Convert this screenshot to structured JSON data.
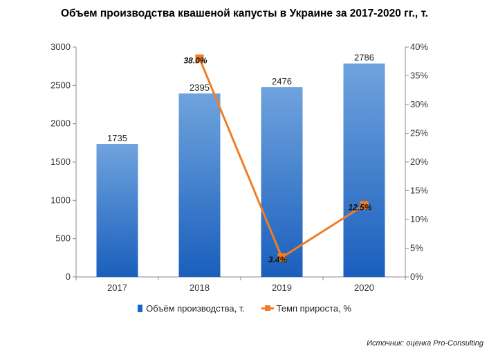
{
  "title": "Объем производства квашеной капусты в Украине за 2017-2020 гг., т.",
  "source": "Источник: оценка Pro-Consulting",
  "colors": {
    "bar": "#1a66c4",
    "bar_top": "#6fa3dd",
    "line": "#f07d26",
    "axis": "#888888"
  },
  "chart_data": {
    "type": "bar",
    "categories": [
      "2017",
      "2018",
      "2019",
      "2020"
    ],
    "series": [
      {
        "name": "Объём производства, т.",
        "type": "bar",
        "axis": "left",
        "values": [
          1735,
          2395,
          2476,
          2786
        ],
        "labels": [
          "1735",
          "2395",
          "2476",
          "2786"
        ]
      },
      {
        "name": "Темп прироста, %",
        "type": "line",
        "axis": "right",
        "x": [
          "2018",
          "2019",
          "2020"
        ],
        "values": [
          38.0,
          3.4,
          12.5
        ],
        "labels": [
          "38.0%",
          "3.4%",
          "12.5%"
        ]
      }
    ],
    "ylim_left": [
      0,
      3000
    ],
    "yticks_left": [
      "3000",
      "2500",
      "2000",
      "1500",
      "1000",
      "500",
      "0"
    ],
    "ylim_right": [
      0,
      40
    ],
    "yticks_right": [
      "40%",
      "35%",
      "30%",
      "25%",
      "20%",
      "15%",
      "10%",
      "5%",
      "0%"
    ],
    "grid": false,
    "legend": "bottom"
  }
}
